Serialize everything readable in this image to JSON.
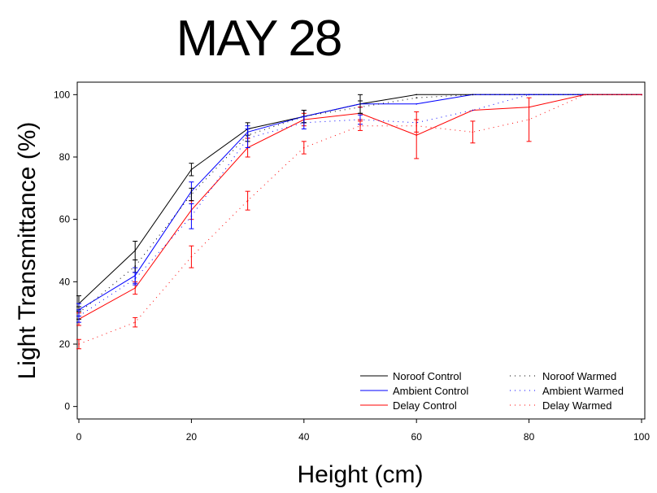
{
  "chart_data": {
    "type": "line",
    "title": "MAY 28",
    "xlabel": "Height (cm)",
    "ylabel": "Light Transmittance (%)",
    "xlim": [
      0,
      100
    ],
    "ylim": [
      -4,
      104
    ],
    "xticks": [
      0,
      20,
      40,
      60,
      80,
      100
    ],
    "yticks": [
      0,
      20,
      40,
      60,
      80,
      100
    ],
    "grid": false,
    "legend_position": "bottom-right",
    "series": [
      {
        "name": "Noroof Control",
        "color": "#000000",
        "style": "solid",
        "x": [
          0,
          10,
          20,
          30,
          40,
          50,
          60,
          70,
          80,
          90,
          100
        ],
        "y": [
          33,
          50,
          76,
          89,
          93,
          97,
          100,
          100,
          100,
          100,
          100
        ],
        "err": [
          2.5,
          3,
          2,
          2,
          2,
          3,
          0,
          0,
          0,
          0,
          0
        ]
      },
      {
        "name": "Ambient Control",
        "color": "#0000ff",
        "style": "solid",
        "x": [
          0,
          10,
          20,
          30,
          40,
          50,
          60,
          70,
          80,
          90,
          100
        ],
        "y": [
          31,
          42,
          69,
          88,
          93,
          97,
          97,
          100,
          100,
          100,
          100
        ],
        "err": [
          2,
          2.5,
          3,
          2,
          2,
          1,
          0,
          0,
          0,
          0,
          0
        ]
      },
      {
        "name": "Delay Control",
        "color": "#ff0000",
        "style": "solid",
        "x": [
          0,
          10,
          20,
          30,
          40,
          50,
          60,
          70,
          80,
          90,
          100
        ],
        "y": [
          28,
          38,
          63,
          83,
          92,
          94,
          87,
          95,
          96,
          100,
          100
        ],
        "err": [
          2,
          2,
          3,
          3,
          2,
          2,
          7.5,
          0,
          0,
          0,
          0
        ]
      },
      {
        "name": "Noroof Warmed",
        "color": "#000000",
        "style": "dotted",
        "x": [
          0,
          10,
          20,
          30,
          40,
          50,
          60,
          70,
          80,
          90,
          100
        ],
        "y": [
          30,
          45,
          68,
          87,
          93,
          96,
          99,
          100,
          100,
          100,
          100
        ],
        "err": [
          2,
          2,
          2,
          2,
          2,
          2,
          0,
          0,
          0,
          0,
          0
        ]
      },
      {
        "name": "Ambient Warmed",
        "color": "#0000ff",
        "style": "dotted",
        "x": [
          0,
          10,
          20,
          30,
          40,
          50,
          60,
          70,
          80,
          90,
          100
        ],
        "y": [
          29,
          41,
          61,
          86,
          91,
          92,
          91,
          95,
          100,
          100,
          100
        ],
        "err": [
          2,
          2,
          4,
          3,
          2,
          1.5,
          0,
          0,
          0,
          0,
          0
        ]
      },
      {
        "name": "Delay Warmed",
        "color": "#ff0000",
        "style": "dotted",
        "x": [
          0,
          10,
          20,
          30,
          40,
          50,
          60,
          70,
          80,
          90,
          100
        ],
        "y": [
          20,
          27,
          48,
          66,
          83,
          90,
          90,
          88,
          92,
          100,
          100
        ],
        "err": [
          1.5,
          1.5,
          3.5,
          3,
          2,
          1.5,
          2,
          3.5,
          7,
          0,
          0
        ]
      }
    ]
  }
}
